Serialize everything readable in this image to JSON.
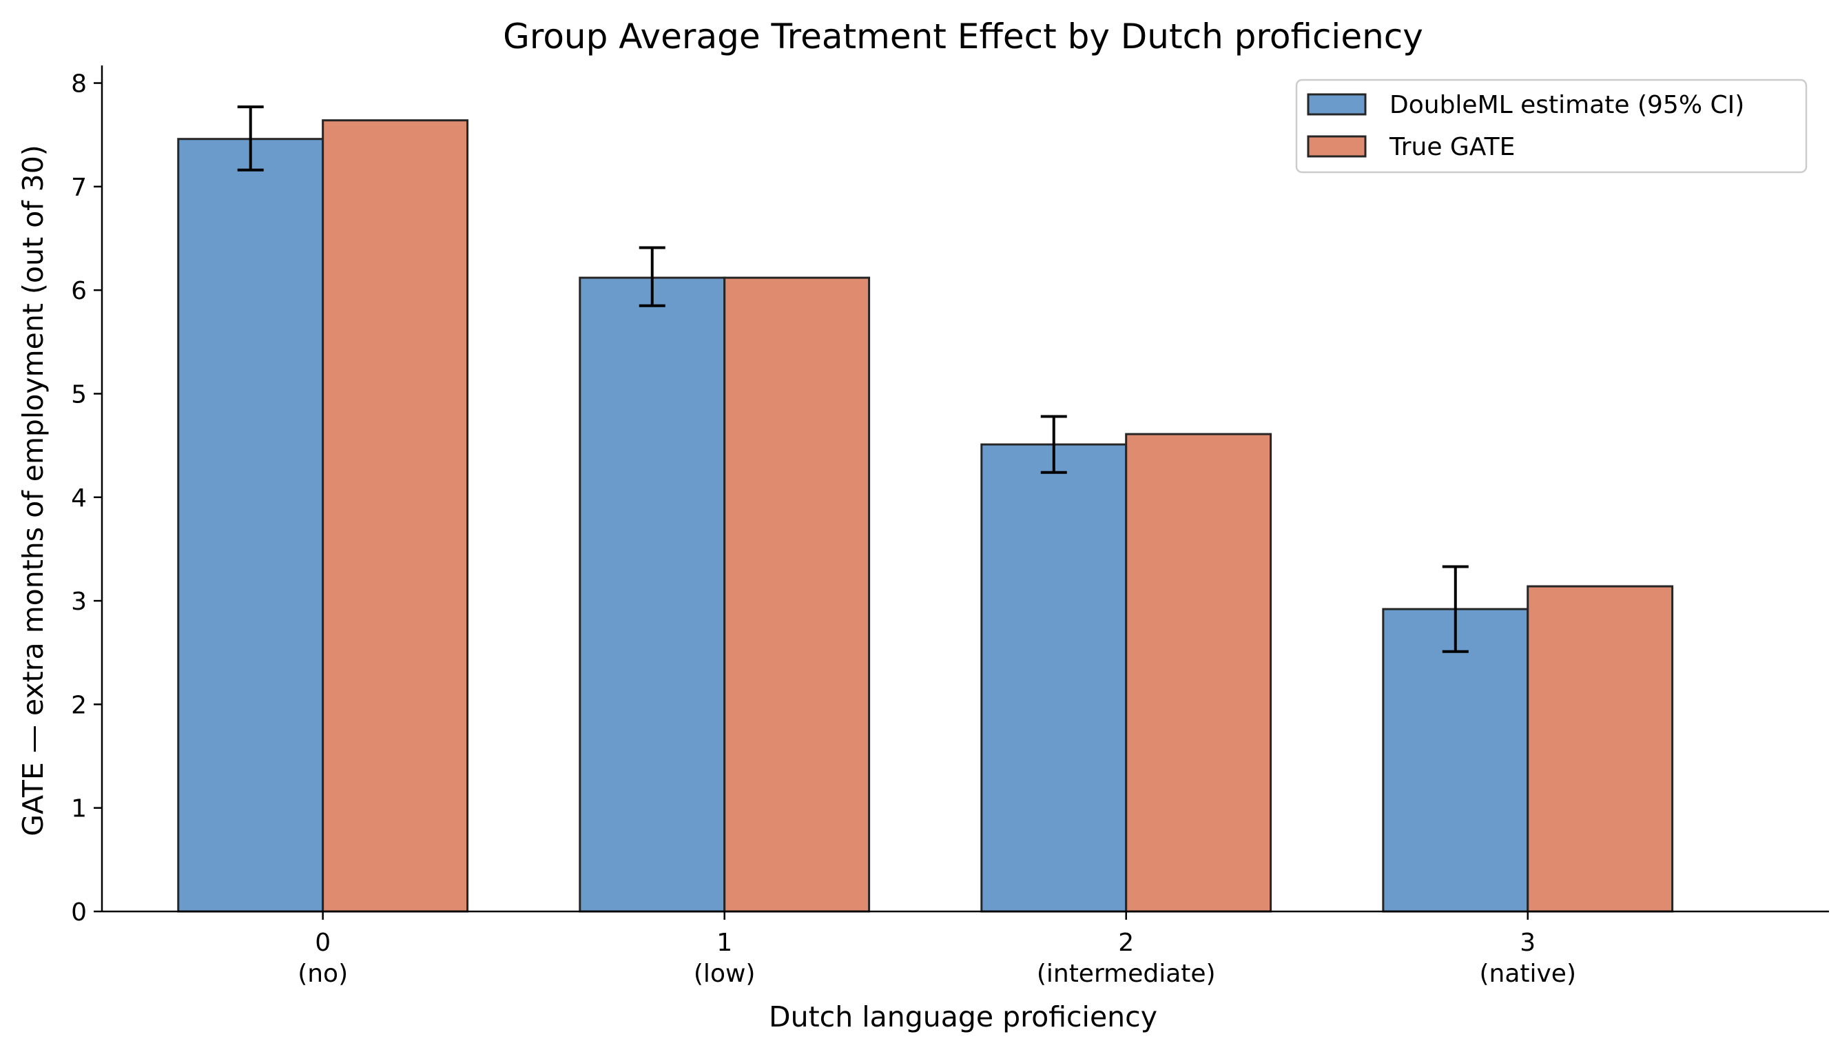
{
  "chart_data": {
    "type": "bar",
    "title": "Group Average Treatment Effect by Dutch proficiency",
    "xlabel": "Dutch language proficiency",
    "ylabel": "GATE — extra months of employment (out of 30)",
    "categories": [
      "0",
      "1",
      "2",
      "3"
    ],
    "category_sublabels": [
      "(no)",
      "(low)",
      "(intermediate)",
      "(native)"
    ],
    "ylim": [
      0,
      8.17
    ],
    "yticks": [
      0,
      1,
      2,
      3,
      4,
      5,
      6,
      7,
      8
    ],
    "grid": false,
    "legend_position": "top-right",
    "series": [
      {
        "name": "DoubleML estimate (95% CI)",
        "color": "#6a9bcb",
        "values": [
          7.46,
          6.12,
          4.51,
          2.92
        ],
        "ci_low": [
          7.16,
          5.85,
          4.24,
          2.51
        ],
        "ci_high": [
          7.77,
          6.41,
          4.78,
          3.33
        ]
      },
      {
        "name": "True GATE",
        "color": "#de8b6f",
        "values": [
          7.64,
          6.12,
          4.61,
          3.14
        ]
      }
    ]
  }
}
